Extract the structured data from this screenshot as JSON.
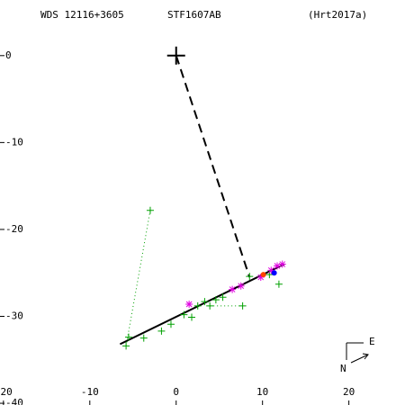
{
  "chart_data": {
    "type": "scatter",
    "header": [
      "WDS 12116+3605",
      "STF1607AB",
      "(Hrt2017a)"
    ],
    "compass": [
      "E",
      "N"
    ],
    "xlim": [
      -20.4,
      26.5
    ],
    "ylim": [
      -40.2,
      6.4
    ],
    "xticks": [
      -20,
      -10,
      0,
      10,
      20
    ],
    "yticks": [
      0,
      -10,
      -20,
      -30,
      -40
    ],
    "series": [
      {
        "marker": "line",
        "color": "#000000",
        "x": [
          -6.5,
          12.5
        ],
        "y": [
          -33.2,
          -24.0
        ]
      },
      {
        "marker": "dashed",
        "color": "#000000",
        "x": [
          0,
          8.5
        ],
        "y": [
          0,
          -25.5
        ]
      },
      {
        "marker": "dotted",
        "color": "#00a000",
        "x": [
          -3.0,
          -5.8
        ],
        "y": [
          -17.8,
          -33.4
        ]
      },
      {
        "marker": "dotted",
        "color": "#00a000",
        "x": [
          3.9,
          7.7
        ],
        "y": [
          -28.8,
          -28.8
        ]
      },
      {
        "marker": "cross",
        "color": "#000000",
        "x": [
          0
        ],
        "y": [
          0
        ]
      },
      {
        "marker": "plus",
        "color": "#00a000",
        "x": [
          -5.8,
          -5.5,
          -3.0,
          -3.75,
          -1.7,
          -0.6,
          0.9,
          1.8,
          2.5,
          3.3,
          3.9,
          4.6,
          5.4,
          7.7,
          8.5,
          10.8,
          11.9
        ],
        "y": [
          -33.4,
          -32.4,
          -17.8,
          -32.5,
          -31.7,
          -30.9,
          -29.8,
          -30.1,
          -28.8,
          -28.3,
          -28.8,
          -28.1,
          -27.8,
          -28.8,
          -25.4,
          -25.2,
          -26.3
        ]
      },
      {
        "marker": "asterisk",
        "color": "#e000e0",
        "x": [
          1.5,
          6.5,
          7.5,
          9.8,
          11.0,
          11.7,
          12.3
        ],
        "y": [
          -28.6,
          -26.9,
          -26.5,
          -25.5,
          -24.7,
          -24.2,
          -24.0
        ]
      },
      {
        "marker": "dot",
        "color": "#ff4000",
        "x": [
          10.1
        ],
        "y": [
          -25.2
        ]
      },
      {
        "marker": "dot",
        "color": "#0000ff",
        "x": [
          11.35
        ],
        "y": [
          -25.0
        ]
      }
    ]
  }
}
